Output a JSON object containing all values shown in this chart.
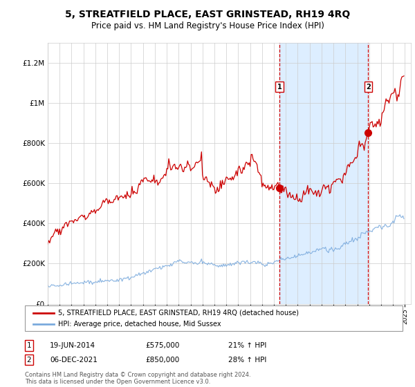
{
  "title": "5, STREATFIELD PLACE, EAST GRINSTEAD, RH19 4RQ",
  "subtitle": "Price paid vs. HM Land Registry's House Price Index (HPI)",
  "legend_line1": "5, STREATFIELD PLACE, EAST GRINSTEAD, RH19 4RQ (detached house)",
  "legend_line2": "HPI: Average price, detached house, Mid Sussex",
  "transaction1_date_label": "19-JUN-2014",
  "transaction1_price": 575000,
  "transaction1_hpi_label": "21% ↑ HPI",
  "transaction1_x": 2014.46,
  "transaction2_date_label": "06-DEC-2021",
  "transaction2_price": 850000,
  "transaction2_hpi_label": "28% ↑ HPI",
  "transaction2_x": 2021.92,
  "footnote": "Contains HM Land Registry data © Crown copyright and database right 2024.\nThis data is licensed under the Open Government Licence v3.0.",
  "red_color": "#cc0000",
  "blue_color": "#7aaadd",
  "shaded_color": "#ddeeff",
  "background_color": "#ffffff",
  "ylim_max": 1300000,
  "start_year": 1995,
  "end_year": 2025
}
